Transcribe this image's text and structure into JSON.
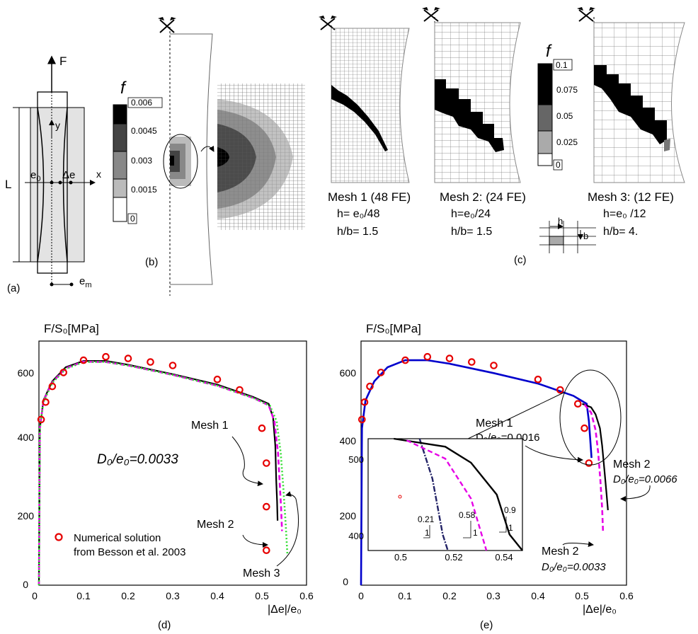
{
  "panel_labels": {
    "a": "(a)",
    "b": "(b)",
    "c": "(c)",
    "d": "(d)",
    "e": "(e)"
  },
  "schematic": {
    "force": "F",
    "length": "L",
    "y": "y",
    "x": "x",
    "e0": "e",
    "e0_sub": "0",
    "de": "Δe",
    "em": "e",
    "em_sub": "m"
  },
  "legend_b": {
    "symbol": "f",
    "ticks": [
      "0.006",
      "0.0045",
      "0.003",
      "0.0015",
      "0"
    ]
  },
  "legend_c": {
    "symbol": "f",
    "ticks": [
      "0.1",
      "0.075",
      "0.05",
      "0.025",
      "0"
    ],
    "cell_h": "h",
    "cell_b": "b"
  },
  "meshes": [
    {
      "title": "Mesh 1 (48 FE)",
      "h": "h= e₀/48",
      "ratio": "h/b= 1.5"
    },
    {
      "title": "Mesh 2:  (24 FE)",
      "h": "h=e₀/24",
      "ratio": "h/b= 1.5"
    },
    {
      "title": "Mesh 3:  (12 FE)",
      "h": "h=e₀ /12",
      "ratio": "h/b= 4."
    }
  ],
  "chart_data": [
    {
      "id": "d",
      "type": "line",
      "ylabel": "F/S₀[MPa]",
      "xlabel": "|Δe|/e₀",
      "xlim": [
        0,
        0.6
      ],
      "ylim": [
        0,
        700
      ],
      "xticks": [
        "0",
        "0.1",
        "0.2",
        "0.3",
        "0.4",
        "0.5",
        "0.6"
      ],
      "yticks": [
        "0",
        "200",
        "400",
        "600"
      ],
      "annotations": {
        "param": "D₀/e₀=0.0033",
        "mesh1": "Mesh 1",
        "mesh2": "Mesh 2",
        "mesh3": "Mesh 3",
        "legend_line1": "Numerical solution",
        "legend_line2": "from Besson et al. 2003"
      },
      "markers": [
        [
          0.005,
          475
        ],
        [
          0.015,
          525
        ],
        [
          0.03,
          570
        ],
        [
          0.055,
          610
        ],
        [
          0.1,
          645
        ],
        [
          0.15,
          655
        ],
        [
          0.2,
          650
        ],
        [
          0.25,
          640
        ],
        [
          0.3,
          630
        ],
        [
          0.4,
          590
        ],
        [
          0.45,
          560
        ],
        [
          0.5,
          450
        ],
        [
          0.51,
          350
        ],
        [
          0.51,
          225
        ],
        [
          0.51,
          100
        ]
      ],
      "series": [
        {
          "name": "Mesh 1",
          "color": "#000000",
          "points": [
            [
              0,
              0
            ],
            [
              0.002,
              450
            ],
            [
              0.01,
              530
            ],
            [
              0.03,
              585
            ],
            [
              0.06,
              625
            ],
            [
              0.1,
              643
            ],
            [
              0.15,
              643
            ],
            [
              0.2,
              632
            ],
            [
              0.3,
              605
            ],
            [
              0.4,
              575
            ],
            [
              0.48,
              540
            ],
            [
              0.515,
              520
            ],
            [
              0.525,
              480
            ],
            [
              0.53,
              400
            ],
            [
              0.532,
              300
            ],
            [
              0.534,
              240
            ],
            [
              0.535,
              185
            ]
          ]
        },
        {
          "name": "Mesh 2",
          "color": "#e600e6",
          "points": [
            [
              0,
              0
            ],
            [
              0.002,
              450
            ],
            [
              0.01,
              528
            ],
            [
              0.03,
              582
            ],
            [
              0.06,
              622
            ],
            [
              0.1,
              641
            ],
            [
              0.15,
              640
            ],
            [
              0.2,
              630
            ],
            [
              0.3,
              603
            ],
            [
              0.4,
              572
            ],
            [
              0.48,
              537
            ],
            [
              0.515,
              516
            ],
            [
              0.528,
              470
            ],
            [
              0.536,
              380
            ],
            [
              0.54,
              290
            ],
            [
              0.543,
              220
            ],
            [
              0.545,
              155
            ]
          ]
        },
        {
          "name": "Mesh 3",
          "color": "#33dd33",
          "points": [
            [
              0,
              0
            ],
            [
              0.002,
              450
            ],
            [
              0.01,
              525
            ],
            [
              0.03,
              580
            ],
            [
              0.06,
              620
            ],
            [
              0.1,
              640
            ],
            [
              0.15,
              640
            ],
            [
              0.2,
              630
            ],
            [
              0.3,
              603
            ],
            [
              0.4,
              572
            ],
            [
              0.48,
              537
            ],
            [
              0.518,
              515
            ],
            [
              0.533,
              470
            ],
            [
              0.542,
              380
            ],
            [
              0.548,
              280
            ],
            [
              0.553,
              180
            ],
            [
              0.557,
              90
            ]
          ]
        }
      ]
    },
    {
      "id": "e",
      "type": "line",
      "ylabel": "F/S₀[MPa]",
      "xlabel": "|Δe|/e₀",
      "xlim": [
        0,
        0.6
      ],
      "ylim": [
        0,
        700
      ],
      "xticks": [
        "0",
        "0.1",
        "0.2",
        "0.3",
        "0.4",
        "0.5",
        "0.6"
      ],
      "yticks": [
        "0",
        "200",
        "400",
        "600"
      ],
      "annotations": {
        "mesh1": "Mesh 1",
        "mesh1_param": "D₀/e₀=0.0016",
        "mesh2a": "Mesh 2",
        "mesh2a_param": "D₀/e₀=0.0066",
        "mesh2b": "Mesh 2",
        "mesh2b_param": "D₀/e₀=0.0033"
      },
      "markers": [
        [
          0.002,
          475
        ],
        [
          0.008,
          525
        ],
        [
          0.02,
          570
        ],
        [
          0.045,
          610
        ],
        [
          0.1,
          645
        ],
        [
          0.15,
          655
        ],
        [
          0.2,
          650
        ],
        [
          0.25,
          640
        ],
        [
          0.3,
          630
        ],
        [
          0.4,
          590
        ],
        [
          0.45,
          560
        ],
        [
          0.49,
          520
        ],
        [
          0.505,
          450
        ],
        [
          0.515,
          350
        ]
      ],
      "series": [
        {
          "name": "Mesh 1 D0/e0=0.0016",
          "color": "#0000cc",
          "points": [
            [
              0,
              0
            ],
            [
              0.002,
              450
            ],
            [
              0.01,
              530
            ],
            [
              0.03,
              585
            ],
            [
              0.06,
              625
            ],
            [
              0.1,
              645
            ],
            [
              0.15,
              645
            ],
            [
              0.2,
              635
            ],
            [
              0.3,
              608
            ],
            [
              0.4,
              578
            ],
            [
              0.48,
              543
            ],
            [
              0.51,
              520
            ],
            [
              0.515,
              470
            ],
            [
              0.519,
              400
            ],
            [
              0.521,
              365
            ]
          ]
        },
        {
          "name": "Mesh 2 D0/e0=0.0066",
          "color": "#000000",
          "points": [
            [
              0.5,
              520
            ],
            [
              0.52,
              510
            ],
            [
              0.53,
              490
            ],
            [
              0.54,
              450
            ],
            [
              0.545,
              400
            ],
            [
              0.55,
              330
            ],
            [
              0.555,
              260
            ],
            [
              0.558,
              215
            ]
          ]
        },
        {
          "name": "Mesh 2 D0/e0=0.0033",
          "color": "#e600e6",
          "points": [
            [
              0.505,
              518
            ],
            [
              0.52,
              495
            ],
            [
              0.53,
              445
            ],
            [
              0.536,
              380
            ],
            [
              0.541,
              300
            ],
            [
              0.545,
              220
            ],
            [
              0.547,
              150
            ]
          ]
        }
      ],
      "inset": {
        "xlim": [
          0.49,
          0.55
        ],
        "ylim": [
          380,
          520
        ],
        "xticks": [
          "0.5",
          "0.52",
          "0.54"
        ],
        "yticks": [
          "400",
          "500"
        ],
        "slopes": [
          "0.21",
          "1",
          "0.58",
          "1",
          "0.9",
          "1"
        ]
      }
    }
  ]
}
